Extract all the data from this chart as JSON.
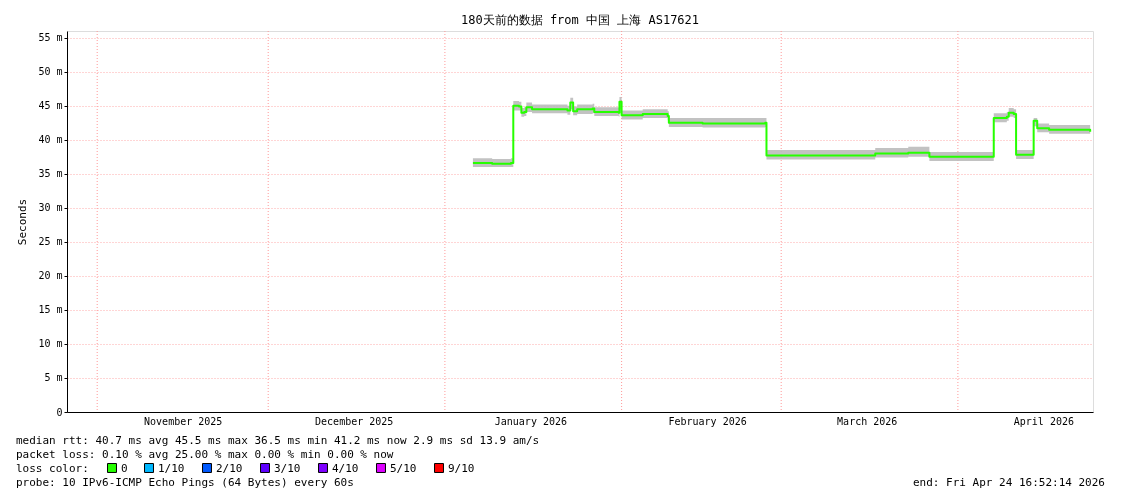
{
  "chart_data": {
    "type": "line",
    "title": "180天前的数据 from 中国 上海 AS17621",
    "ylabel": "Seconds",
    "legend_title": "loss color:",
    "legend": "bottom",
    "grid": "y",
    "x": [
      "2026-01-05T22:00",
      "2026-01-09T07:00",
      "2026-01-12T14:00",
      "2026-01-13T00:00",
      "2026-01-14T00:00",
      "2026-01-14T10:00",
      "2026-01-14T22:00",
      "2026-01-15T07:00",
      "2026-01-16T07:00",
      "2026-01-22T12:00",
      "2026-01-23T00:00",
      "2026-01-23T12:00",
      "2026-01-24T05:00",
      "2026-01-26T22:00",
      "2026-01-27T05:00",
      "2026-01-31T12:00",
      "2026-01-31T15:00",
      "2026-02-01T00:00",
      "2026-02-04T17:00",
      "2026-02-09T02:00",
      "2026-02-09T07:00",
      "2026-02-15T05:00",
      "2026-02-26T05:00",
      "2026-02-26T10:00",
      "2026-03-15T10:00",
      "2026-03-17T12:00",
      "2026-03-23T07:00",
      "2026-03-26T22:00",
      "2026-03-27T00:00",
      "2026-04-07T00:00",
      "2026-04-07T07:00",
      "2026-04-09T14:00",
      "2026-04-09T22:00",
      "2026-04-10T19:00",
      "2026-04-11T05:00",
      "2026-04-14T00:00",
      "2026-04-14T07:00",
      "2026-04-14T22:00",
      "2026-04-17T00:00",
      "2026-04-24T05:00"
    ],
    "series": [
      {
        "name": "0",
        "color": "#26ff00",
        "values": [
          36.6,
          36.5,
          36.6,
          45.0,
          44.9,
          44.0,
          44.1,
          44.8,
          44.5,
          44.3,
          45.5,
          44.2,
          44.5,
          44.6,
          44.1,
          44.0,
          45.6,
          43.6,
          43.8,
          43.5,
          42.5,
          42.4,
          42.5,
          37.7,
          37.7,
          38.0,
          38.1,
          38.1,
          37.5,
          37.5,
          43.2,
          43.4,
          44.0,
          43.8,
          37.8,
          37.8,
          42.8,
          41.7,
          41.5,
          41.2
        ],
        "lower": [
          36.0,
          36.0,
          36.0,
          44.3,
          44.3,
          43.4,
          43.5,
          44.1,
          43.9,
          43.7,
          44.5,
          43.6,
          43.8,
          43.9,
          43.5,
          43.4,
          44.5,
          43.0,
          43.2,
          42.9,
          41.9,
          41.8,
          41.9,
          37.1,
          37.1,
          37.4,
          37.5,
          37.5,
          36.9,
          36.9,
          42.6,
          42.8,
          43.4,
          43.2,
          37.2,
          37.2,
          42.0,
          41.1,
          40.9,
          40.6
        ],
        "upper": [
          37.3,
          37.2,
          37.3,
          45.7,
          45.6,
          44.7,
          44.8,
          45.5,
          45.2,
          45.0,
          46.2,
          44.9,
          45.2,
          45.3,
          44.8,
          44.7,
          46.3,
          44.3,
          44.5,
          44.2,
          43.2,
          43.2,
          43.2,
          38.5,
          38.5,
          38.8,
          39.0,
          39.0,
          38.2,
          38.2,
          43.9,
          44.1,
          44.7,
          44.5,
          38.5,
          38.5,
          43.2,
          42.4,
          42.2,
          41.9
        ]
      },
      {
        "name": "1/10",
        "color": "#00b8ff",
        "values": [
          null,
          null,
          null,
          null,
          null,
          null,
          null,
          null,
          null,
          null,
          null,
          null,
          null,
          null,
          null,
          null,
          null,
          null,
          null,
          null,
          null,
          null,
          null,
          null,
          null,
          null,
          null,
          null,
          null,
          null,
          null,
          null,
          null,
          null,
          null,
          null,
          null,
          null,
          null,
          null
        ]
      },
      {
        "name": "2/10",
        "color": "#0059ff",
        "values": [
          null,
          null,
          null,
          null,
          null,
          null,
          null,
          null,
          null,
          null,
          null,
          null,
          null,
          null,
          null,
          null,
          null,
          null,
          null,
          null,
          null,
          null,
          null,
          null,
          null,
          null,
          null,
          null,
          null,
          null,
          null,
          null,
          null,
          null,
          null,
          null,
          null,
          null,
          null,
          null
        ]
      },
      {
        "name": "3/10",
        "color": "#5e00ff",
        "values": [
          null,
          null,
          null,
          null,
          null,
          null,
          null,
          null,
          null,
          null,
          null,
          null,
          null,
          null,
          null,
          null,
          null,
          null,
          null,
          null,
          null,
          null,
          null,
          null,
          null,
          null,
          null,
          null,
          null,
          null,
          null,
          null,
          null,
          null,
          null,
          null,
          null,
          null,
          null,
          null
        ]
      },
      {
        "name": "4/10",
        "color": "#7e00ff",
        "values": [
          null,
          null,
          null,
          null,
          null,
          null,
          null,
          null,
          null,
          null,
          null,
          null,
          null,
          null,
          null,
          null,
          null,
          null,
          null,
          null,
          null,
          null,
          null,
          null,
          null,
          null,
          null,
          null,
          null,
          null,
          null,
          null,
          null,
          null,
          null,
          null,
          null,
          null,
          null,
          null
        ]
      },
      {
        "name": "5/10",
        "color": "#dd00ff",
        "values": [
          null,
          null,
          null,
          null,
          null,
          null,
          null,
          null,
          null,
          null,
          null,
          null,
          null,
          null,
          null,
          null,
          null,
          null,
          null,
          null,
          null,
          null,
          null,
          null,
          null,
          null,
          null,
          null,
          null,
          null,
          null,
          null,
          null,
          null,
          null,
          null,
          null,
          null,
          null,
          null
        ]
      },
      {
        "name": "9/10",
        "color": "#ff0000",
        "values": [
          null,
          null,
          null,
          null,
          null,
          null,
          null,
          null,
          null,
          null,
          null,
          null,
          null,
          null,
          null,
          null,
          null,
          null,
          null,
          null,
          null,
          null,
          null,
          null,
          null,
          null,
          null,
          null,
          null,
          null,
          null,
          null,
          null,
          null,
          null,
          null,
          null,
          null,
          null,
          null
        ]
      }
    ],
    "xlim": [
      "2025-10-26T16:52",
      "2026-04-24T16:52"
    ],
    "xticks": [
      {
        "value": "2025-11-16",
        "label": "November 2025"
      },
      {
        "value": "2025-12-16",
        "label": "December 2025"
      },
      {
        "value": "2026-01-16",
        "label": "January 2026"
      },
      {
        "value": "2026-02-16",
        "label": "February 2026"
      },
      {
        "value": "2026-03-16",
        "label": "March 2026"
      },
      {
        "value": "2026-04-16",
        "label": "April 2026"
      }
    ],
    "ylim": [
      0,
      56
    ],
    "yticks": [
      0,
      {
        "value": 5,
        "label": "5 m"
      },
      {
        "value": 10,
        "label": "10 m"
      },
      {
        "value": 15,
        "label": "15 m"
      },
      {
        "value": 20,
        "label": "20 m"
      },
      {
        "value": 25,
        "label": "25 m"
      },
      {
        "value": 30,
        "label": "30 m"
      },
      {
        "value": 35,
        "label": "35 m"
      },
      {
        "value": 40,
        "label": "40 m"
      },
      {
        "value": 45,
        "label": "45 m"
      },
      {
        "value": 50,
        "label": "50 m"
      },
      {
        "value": 55,
        "label": "55 m"
      }
    ],
    "ref_lines": [
      {
        "axis": "x",
        "value": "2025-11-01",
        "color": "#ff9999",
        "line_style": "dotted"
      },
      {
        "axis": "x",
        "value": "2025-12-01",
        "color": "#ff9999",
        "line_style": "dotted"
      },
      {
        "axis": "x",
        "value": "2026-01-01",
        "color": "#ff9999",
        "line_style": "dotted"
      },
      {
        "axis": "x",
        "value": "2026-02-01",
        "color": "#ff9999",
        "line_style": "dotted"
      },
      {
        "axis": "x",
        "value": "2026-03-01",
        "color": "#ff9999",
        "line_style": "dotted"
      },
      {
        "axis": "x",
        "value": "2026-04-01",
        "color": "#ff9999",
        "line_style": "dotted"
      }
    ],
    "annotations": [
      "median rtt:  40.7 ms avg  45.5 ms max  36.5 ms min  41.2 ms now  2.9 ms sd  13.9   am/s",
      "packet loss: 0.10 % avg  25.00 % max  0.00 % min  0.00 % now",
      "probe:       10 IPv6-ICMP Echo Pings (64 Bytes) every 60s",
      "end: Fri Apr 24 16:52:14 2026"
    ]
  }
}
